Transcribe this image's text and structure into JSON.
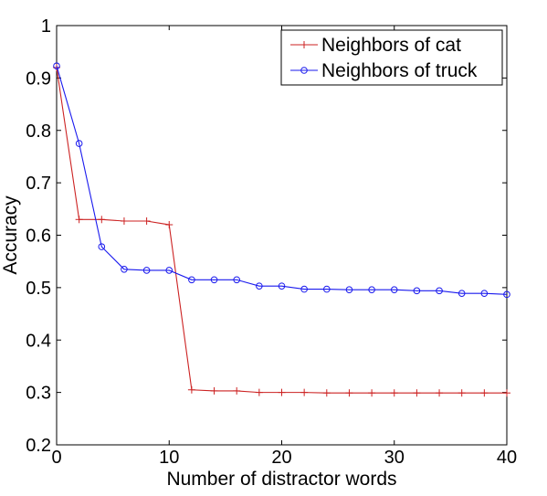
{
  "chart_data": {
    "type": "line",
    "title": "",
    "xlabel": "Number of distractor words",
    "ylabel": "Accuracy",
    "xlim": [
      0,
      40
    ],
    "ylim": [
      0.2,
      1
    ],
    "xticks": [
      0,
      10,
      20,
      30,
      40
    ],
    "yticks": [
      0.2,
      0.3,
      0.4,
      0.5,
      0.6,
      0.7,
      0.8,
      0.9,
      1
    ],
    "ytick_labels": [
      "0.2",
      "0.3",
      "0.4",
      "0.5",
      "0.6",
      "0.7",
      "0.8",
      "0.9",
      "1"
    ],
    "grid": false,
    "legend_position": "top-right",
    "series": [
      {
        "name": "Neighbors of cat",
        "color": "#cc2222",
        "marker": "plus",
        "x": [
          0,
          2,
          4,
          6,
          8,
          10,
          12,
          14,
          16,
          18,
          20,
          22,
          24,
          26,
          28,
          30,
          32,
          34,
          36,
          38,
          40
        ],
        "y": [
          0.92,
          0.63,
          0.63,
          0.627,
          0.627,
          0.62,
          0.305,
          0.303,
          0.303,
          0.3,
          0.3,
          0.3,
          0.299,
          0.299,
          0.299,
          0.299,
          0.299,
          0.299,
          0.299,
          0.299,
          0.299
        ]
      },
      {
        "name": "Neighbors of truck",
        "color": "#1a1aee",
        "marker": "circle",
        "x": [
          0,
          2,
          4,
          6,
          8,
          10,
          12,
          14,
          16,
          18,
          20,
          22,
          24,
          26,
          28,
          30,
          32,
          34,
          36,
          38,
          40
        ],
        "y": [
          0.923,
          0.775,
          0.578,
          0.535,
          0.533,
          0.533,
          0.515,
          0.515,
          0.515,
          0.503,
          0.503,
          0.497,
          0.497,
          0.496,
          0.496,
          0.496,
          0.494,
          0.494,
          0.489,
          0.489,
          0.487
        ]
      }
    ]
  }
}
